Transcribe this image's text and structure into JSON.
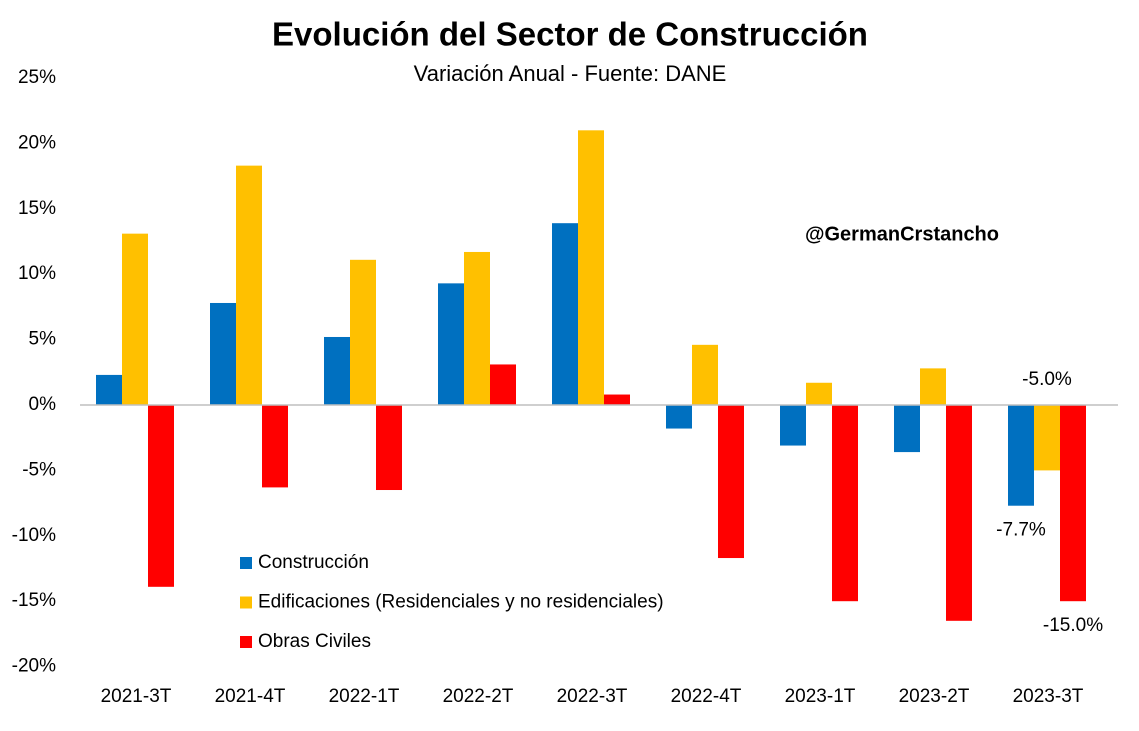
{
  "chart_data": {
    "type": "bar",
    "title": "Evolución del Sector de Construcción",
    "subtitle": "Variación Anual - Fuente: DANE",
    "annotation": "@GermanCrstancho",
    "categories": [
      "2021-3T",
      "2021-4T",
      "2022-1T",
      "2022-2T",
      "2022-3T",
      "2022-4T",
      "2023-1T",
      "2023-2T",
      "2023-3T"
    ],
    "series": [
      {
        "name": "Construcción",
        "color": "#0070c0",
        "values": [
          2.3,
          7.8,
          5.2,
          9.3,
          13.9,
          -1.8,
          -3.1,
          -3.6,
          -7.7
        ],
        "value_labels": [
          null,
          null,
          null,
          null,
          null,
          null,
          null,
          null,
          "-7.7%"
        ]
      },
      {
        "name": "Edificaciones (Residenciales y no residenciales)",
        "color": "#ffc000",
        "values": [
          13.1,
          18.3,
          11.1,
          11.7,
          21.0,
          4.6,
          1.7,
          2.8,
          -5.0
        ],
        "value_labels": [
          null,
          null,
          null,
          null,
          null,
          null,
          null,
          null,
          "-5.0%"
        ]
      },
      {
        "name": "Obras Civiles",
        "color": "#ff0000",
        "values": [
          -13.9,
          -6.3,
          -6.5,
          3.1,
          0.8,
          -11.7,
          -15.0,
          -16.5,
          -15.0
        ],
        "value_labels": [
          null,
          null,
          null,
          null,
          null,
          null,
          null,
          null,
          "-15.0%"
        ]
      }
    ],
    "ylim": [
      -20,
      25
    ],
    "yticks": [
      {
        "value": -20,
        "label": "-20%"
      },
      {
        "value": -15,
        "label": "-15%"
      },
      {
        "value": -10,
        "label": "-10%"
      },
      {
        "value": -5,
        "label": "-5%"
      },
      {
        "value": 0,
        "label": "0%"
      },
      {
        "value": 5,
        "label": "5%"
      },
      {
        "value": 10,
        "label": "10%"
      },
      {
        "value": 15,
        "label": "15%"
      },
      {
        "value": 20,
        "label": "20%"
      },
      {
        "value": 25,
        "label": "25%"
      }
    ],
    "grid": false,
    "legend": "lower-left"
  }
}
